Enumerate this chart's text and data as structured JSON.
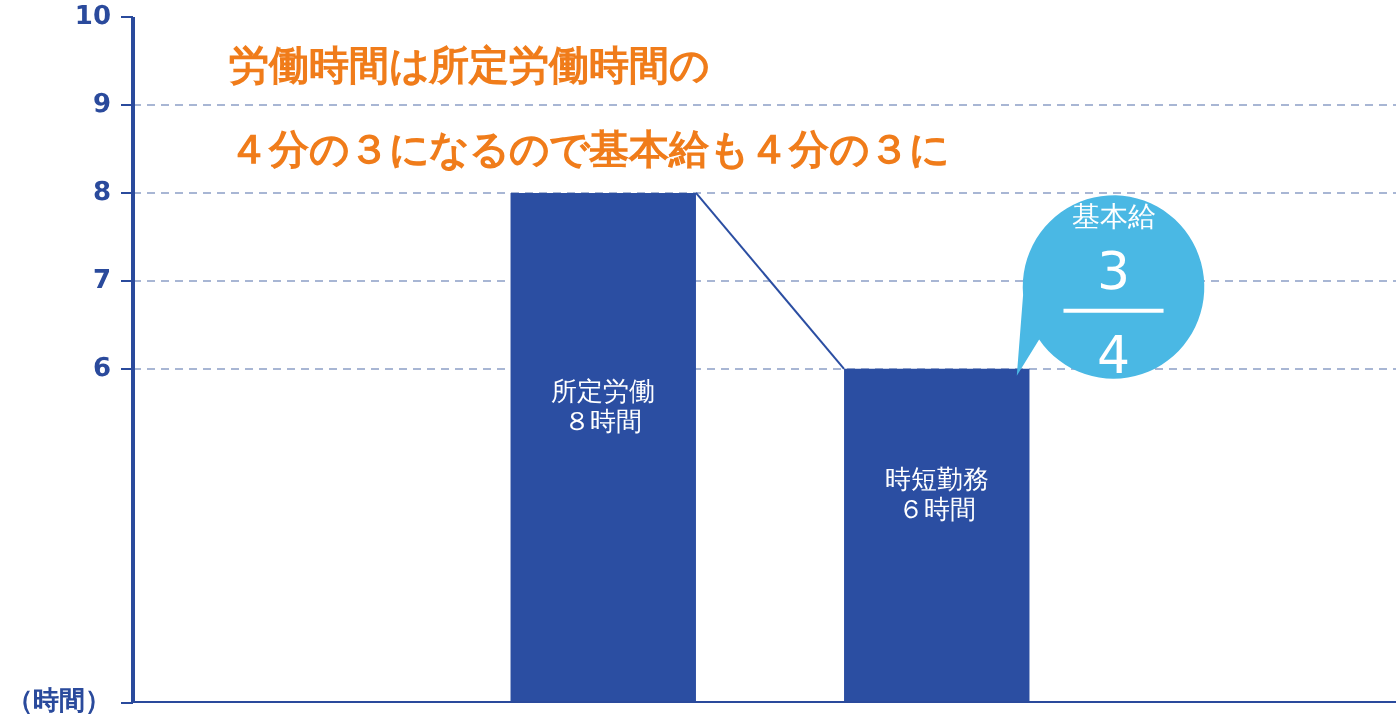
{
  "chart_data": {
    "type": "bar",
    "title": "労働時間は所定労働時間の",
    "subtitle": "４分の３になるので基本給も４分の３に",
    "ylabel": "（時間）",
    "categories": [
      "所定労働",
      "時短勤務"
    ],
    "values": [
      8,
      6
    ],
    "value_labels": [
      "８時間",
      "６時間"
    ],
    "color": "#2b4ea2",
    "ylim": [
      2.2,
      10
    ],
    "yticks": [
      6,
      7,
      8,
      9,
      10
    ],
    "grid": "y",
    "line_style": "dashed",
    "annotations": [
      "基本給",
      "3",
      "4"
    ]
  }
}
